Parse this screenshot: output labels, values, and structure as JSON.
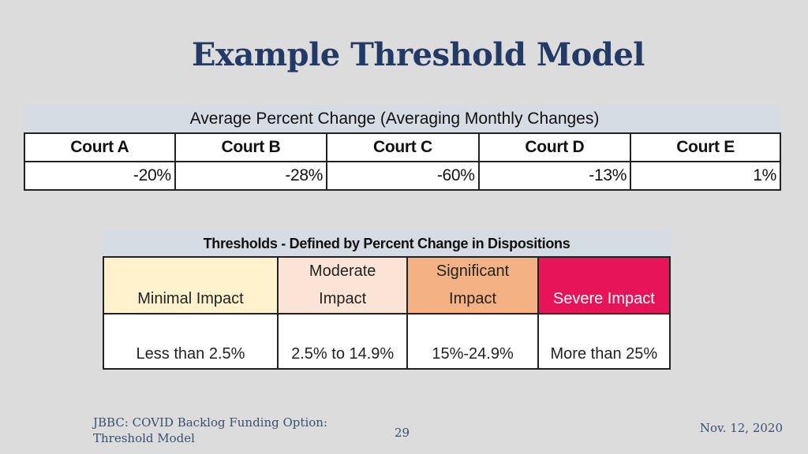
{
  "slide": {
    "title": "Example Threshold Model"
  },
  "table1": {
    "caption": "Average Percent Change (Averaging Monthly Changes)",
    "headers": [
      "Court A",
      "Court B",
      "Court C",
      "Court D",
      "Court E"
    ],
    "values": [
      "-20%",
      "-28%",
      "-60%",
      "-13%",
      "1%"
    ]
  },
  "table2": {
    "caption": "Thresholds - Defined by Percent Change in Dispositions",
    "headers": [
      {
        "line1": "",
        "line2": "Minimal Impact"
      },
      {
        "line1": "Moderate",
        "line2": "Impact"
      },
      {
        "line1": "Significant",
        "line2": "Impact"
      },
      {
        "line1": "",
        "line2": "Severe Impact"
      }
    ],
    "values": [
      "Less than 2.5%",
      "2.5% to 14.9%",
      "15%-24.9%",
      "More than 25%"
    ],
    "colors": {
      "minimal": "#fff2cc",
      "moderate": "#fbe4d5",
      "significant": "#f4b183",
      "severe": "#e8145a"
    }
  },
  "footer": {
    "left_line1": "JBBC: COVID Backlog Funding Option:",
    "left_line2": "Threshold Model",
    "page_number": "29",
    "date": "Nov. 12, 2020"
  }
}
